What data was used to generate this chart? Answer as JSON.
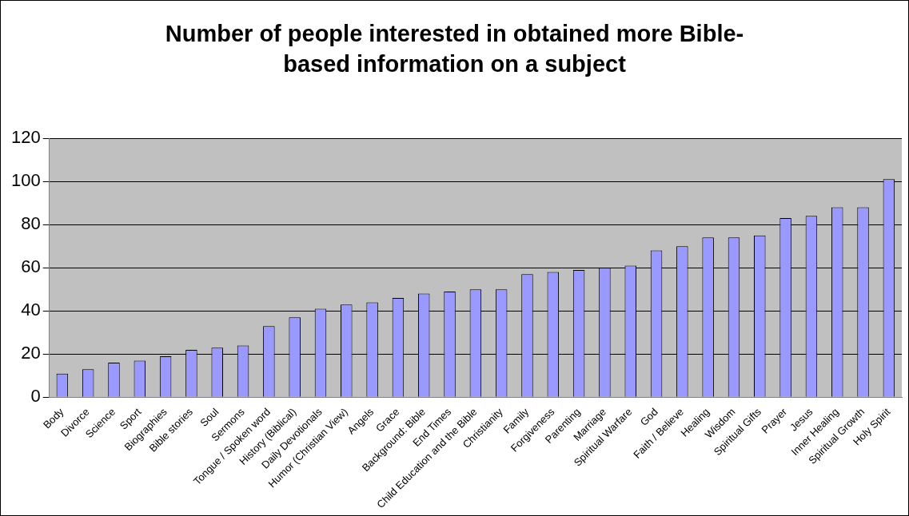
{
  "chart_data": {
    "type": "bar",
    "title": "Number of people interested in obtained more Bible-based information on a subject",
    "categories": [
      "Body",
      "Divorce",
      "Science",
      "Sport",
      "Biographies",
      "Bible stories",
      "Soul",
      "Sermons",
      "Tongue / Spoken word",
      "History (Biblical)",
      "Daily Devotionals",
      "Humor (Christian View)",
      "Angels",
      "Grace",
      "Background: Bible",
      "End Times",
      "Child Education and the Bible",
      "Christianity",
      "Family",
      "Forgiveness",
      "Parenting",
      "Marriage",
      "Spiritual Warfare",
      "God",
      "Faith / Believe",
      "Healing",
      "Wisdom",
      "Spiritual Gifts",
      "Prayer",
      "Jesus",
      "Inner Healing",
      "Spiritual Growth",
      "Holy Spirit"
    ],
    "values": [
      11,
      13,
      16,
      17,
      19,
      22,
      23,
      24,
      33,
      37,
      41,
      43,
      44,
      46,
      48,
      49,
      50,
      50,
      57,
      58,
      59,
      60,
      61,
      68,
      70,
      74,
      74,
      75,
      83,
      84,
      88,
      88,
      101
    ],
    "color": "#9999ff",
    "ylim": [
      0,
      120
    ],
    "yticks": [
      0,
      20,
      40,
      60,
      80,
      100,
      120
    ],
    "grid": "y"
  }
}
